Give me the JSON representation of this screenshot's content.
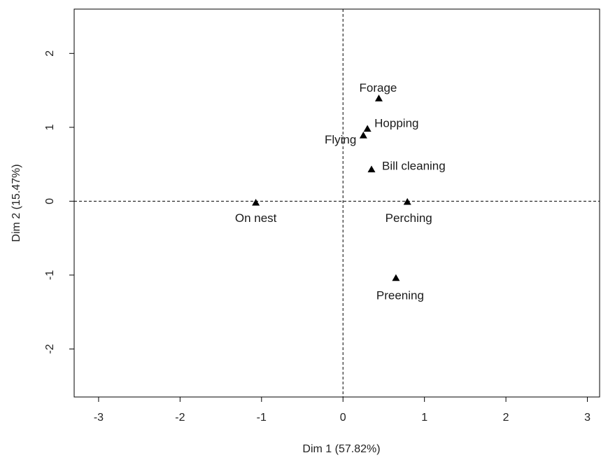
{
  "chart_data": {
    "type": "scatter",
    "title": "",
    "xlabel": "Dim 1 (57.82%)",
    "ylabel": "Dim 2 (15.47%)",
    "xlim": [
      -3.3,
      3.15
    ],
    "ylim": [
      -2.65,
      2.6
    ],
    "xticks": [
      -3,
      -2,
      -1,
      0,
      1,
      2,
      3
    ],
    "yticks": [
      -2,
      -1,
      0,
      1,
      2
    ],
    "reference_lines": {
      "x": 0,
      "y": 0,
      "style": "dashed"
    },
    "marker": "filled-triangle",
    "points": [
      {
        "label": "Forage",
        "x": 0.44,
        "y": 1.39
      },
      {
        "label": "Hopping",
        "x": 0.3,
        "y": 0.98
      },
      {
        "label": "Flying",
        "x": 0.25,
        "y": 0.89
      },
      {
        "label": "Bill cleaning",
        "x": 0.35,
        "y": 0.43
      },
      {
        "label": "On nest",
        "x": -1.07,
        "y": -0.02
      },
      {
        "label": "Perching",
        "x": 0.79,
        "y": -0.01
      },
      {
        "label": "Preening",
        "x": 0.65,
        "y": -1.04
      }
    ],
    "grid": false,
    "legend": "none"
  }
}
